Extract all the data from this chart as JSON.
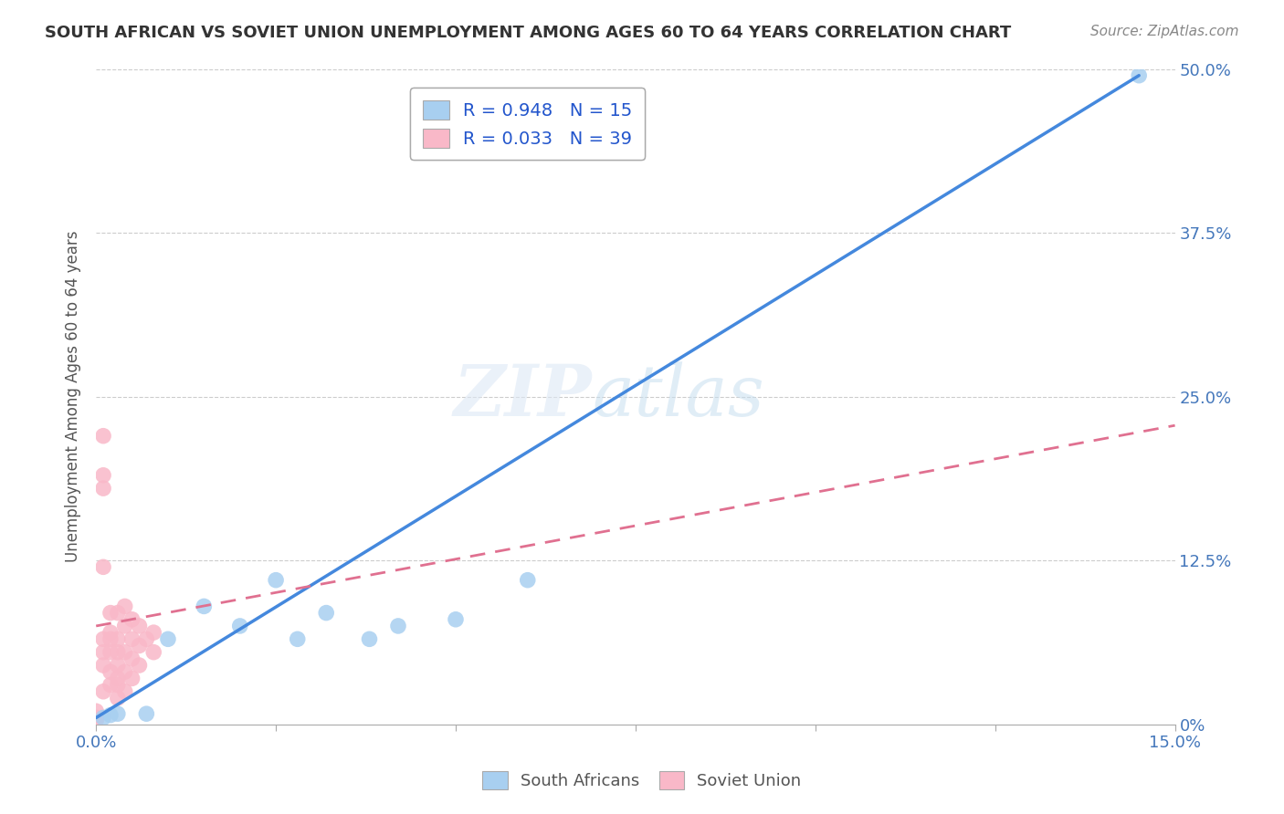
{
  "title": "SOUTH AFRICAN VS SOVIET UNION UNEMPLOYMENT AMONG AGES 60 TO 64 YEARS CORRELATION CHART",
  "source": "Source: ZipAtlas.com",
  "ylabel_label": "Unemployment Among Ages 60 to 64 years",
  "legend_label1": "R = 0.948   N = 15",
  "legend_label2": "R = 0.033   N = 39",
  "legend_footer1": "South Africans",
  "legend_footer2": "Soviet Union",
  "blue_color": "#a8cff0",
  "pink_color": "#f9b8c8",
  "blue_line_color": "#4488dd",
  "pink_line_color": "#e07090",
  "xlim": [
    0.0,
    0.15
  ],
  "ylim": [
    0.0,
    0.5
  ],
  "south_african_x": [
    0.001,
    0.002,
    0.003,
    0.007,
    0.01,
    0.015,
    0.02,
    0.025,
    0.028,
    0.032,
    0.038,
    0.042,
    0.05,
    0.06,
    0.145
  ],
  "south_african_y": [
    0.005,
    0.007,
    0.008,
    0.008,
    0.065,
    0.09,
    0.075,
    0.11,
    0.065,
    0.085,
    0.065,
    0.075,
    0.08,
    0.11,
    0.495
  ],
  "soviet_x": [
    0.0,
    0.0,
    0.0,
    0.001,
    0.001,
    0.001,
    0.001,
    0.001,
    0.001,
    0.001,
    0.001,
    0.002,
    0.002,
    0.002,
    0.002,
    0.002,
    0.002,
    0.003,
    0.003,
    0.003,
    0.003,
    0.003,
    0.003,
    0.003,
    0.004,
    0.004,
    0.004,
    0.004,
    0.004,
    0.005,
    0.005,
    0.005,
    0.005,
    0.006,
    0.006,
    0.006,
    0.007,
    0.008,
    0.008
  ],
  "soviet_y": [
    0.01,
    0.005,
    0.003,
    0.22,
    0.19,
    0.18,
    0.12,
    0.065,
    0.055,
    0.045,
    0.025,
    0.085,
    0.07,
    0.065,
    0.055,
    0.04,
    0.03,
    0.085,
    0.065,
    0.055,
    0.045,
    0.035,
    0.03,
    0.02,
    0.09,
    0.075,
    0.055,
    0.04,
    0.025,
    0.08,
    0.065,
    0.05,
    0.035,
    0.075,
    0.06,
    0.045,
    0.065,
    0.07,
    0.055
  ],
  "blue_line_x0": 0.0,
  "blue_line_y0": 0.005,
  "blue_line_x1": 0.145,
  "blue_line_y1": 0.495,
  "pink_line_x0": 0.0,
  "pink_line_y0": 0.075,
  "pink_line_x1": 0.15,
  "pink_line_y1": 0.228,
  "yticks": [
    0.0,
    0.125,
    0.25,
    0.375,
    0.5
  ],
  "ytick_labels": [
    "0%",
    "12.5%",
    "25.0%",
    "37.5%",
    "50.0%"
  ]
}
